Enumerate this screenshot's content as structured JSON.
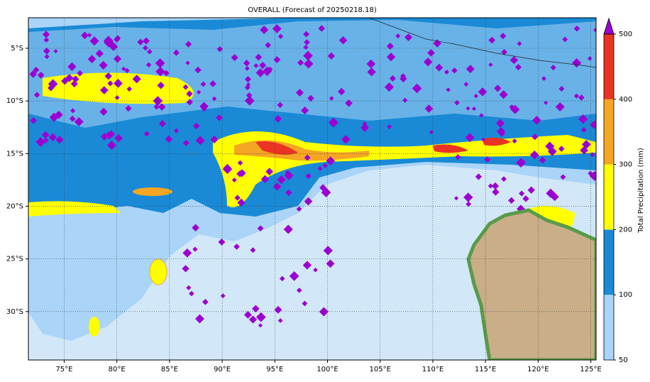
{
  "map": {
    "title": "OVERALL (Forecast of 20250218.18)",
    "lonlim": [
      71.6,
      125.5
    ],
    "latlim": [
      -2.1,
      -34.6
    ],
    "lon_ticks": [
      {
        "value": 75,
        "label": "75°E"
      },
      {
        "value": 80,
        "label": "80°E"
      },
      {
        "value": 85,
        "label": "85°E"
      },
      {
        "value": 90,
        "label": "90°E"
      },
      {
        "value": 95,
        "label": "95°E"
      },
      {
        "value": 100,
        "label": "100°E"
      },
      {
        "value": 105,
        "label": "105°E"
      },
      {
        "value": 110,
        "label": "110°E"
      },
      {
        "value": 115,
        "label": "115°E"
      },
      {
        "value": 120,
        "label": "120°E"
      },
      {
        "value": 125,
        "label": "125°E"
      }
    ],
    "lat_ticks": [
      {
        "value": -5,
        "label": "5°S"
      },
      {
        "value": -10,
        "label": "10°S"
      },
      {
        "value": -15,
        "label": "15°S"
      },
      {
        "value": -20,
        "label": "20°S"
      },
      {
        "value": -25,
        "label": "25°S"
      },
      {
        "value": -30,
        "label": "30°S"
      }
    ],
    "colorbar": {
      "label": "Total Precipitation (mm)",
      "levels": [
        50,
        100,
        200,
        300,
        400,
        500
      ],
      "colors": [
        "#aad4f8",
        "#1a8ad6",
        "#ffff00",
        "#f5a623",
        "#ea3323"
      ],
      "extend_color": "#9b00d3",
      "ticks": [
        50,
        100,
        200,
        300,
        400,
        500
      ]
    }
  }
}
